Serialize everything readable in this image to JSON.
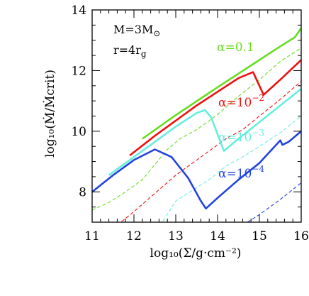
{
  "chart_data": {
    "type": "line",
    "xlabel": "log₁₀(Σ/g·cm⁻²)",
    "ylabel": "log₁₀(Ṁ/Ṁcrit)",
    "xlim": [
      11,
      16
    ],
    "ylim": [
      7,
      14
    ],
    "x_ticks": [
      "11",
      "12",
      "13",
      "14",
      "15",
      "16"
    ],
    "y_ticks": [
      "8",
      "10",
      "12",
      "14"
    ],
    "annotations": {
      "mass": "M=3M",
      "mass_symbol": "⊙",
      "radius": "r=4r",
      "radius_sub": "g"
    },
    "series": [
      {
        "name": "α=0.1",
        "label_base": "α=0.1",
        "label_exp": "",
        "color": "#66dd22",
        "solid": [
          [
            12.2,
            9.75
          ],
          [
            13.0,
            10.53
          ],
          [
            14.0,
            11.45
          ],
          [
            15.0,
            12.35
          ],
          [
            15.5,
            12.8
          ],
          [
            15.85,
            13.1
          ],
          [
            16.0,
            13.4
          ]
        ],
        "dashed": [
          [
            11.0,
            7.4
          ],
          [
            11.4,
            7.65
          ],
          [
            11.8,
            8.0
          ],
          [
            12.2,
            8.4
          ],
          [
            12.5,
            8.9
          ],
          [
            12.8,
            9.4
          ],
          [
            13.1,
            9.75
          ],
          [
            13.5,
            10.05
          ],
          [
            14.0,
            10.55
          ],
          [
            14.5,
            11.15
          ],
          [
            15.0,
            11.7
          ],
          [
            15.5,
            12.3
          ],
          [
            16.0,
            12.75
          ]
        ]
      },
      {
        "name": "α=10⁻²",
        "label_base": "α=10",
        "label_exp": "−2",
        "color": "#ee1111",
        "solid": [
          [
            11.9,
            9.2
          ],
          [
            12.5,
            9.85
          ],
          [
            13.0,
            10.35
          ],
          [
            13.5,
            10.85
          ],
          [
            14.0,
            11.3
          ],
          [
            14.5,
            11.75
          ],
          [
            14.85,
            11.95
          ],
          [
            15.0,
            11.5
          ],
          [
            15.1,
            11.2
          ],
          [
            15.5,
            11.7
          ],
          [
            16.0,
            12.35
          ]
        ],
        "dashed": [
          [
            11.6,
            6.9
          ],
          [
            12.0,
            7.35
          ],
          [
            12.5,
            7.95
          ],
          [
            13.0,
            8.55
          ],
          [
            13.3,
            8.85
          ],
          [
            13.55,
            9.1
          ],
          [
            13.8,
            9.35
          ],
          [
            14.2,
            9.75
          ],
          [
            14.6,
            10.05
          ],
          [
            15.0,
            10.5
          ],
          [
            15.5,
            11.05
          ],
          [
            16.0,
            11.65
          ]
        ]
      },
      {
        "name": "α=10⁻³",
        "label_base": "α=10",
        "label_exp": "−3",
        "color": "#66eedd",
        "solid": [
          [
            11.4,
            8.55
          ],
          [
            12.0,
            9.15
          ],
          [
            12.5,
            9.65
          ],
          [
            13.0,
            10.15
          ],
          [
            13.5,
            10.6
          ],
          [
            13.7,
            10.7
          ],
          [
            13.85,
            10.45
          ],
          [
            14.0,
            9.9
          ],
          [
            14.15,
            9.35
          ],
          [
            14.5,
            9.75
          ],
          [
            15.0,
            10.3
          ],
          [
            15.5,
            10.85
          ],
          [
            16.0,
            11.4
          ]
        ],
        "dashed": [
          [
            12.6,
            6.9
          ],
          [
            12.7,
            7.05
          ],
          [
            13.0,
            7.7
          ],
          [
            13.4,
            8.05
          ],
          [
            13.8,
            8.4
          ],
          [
            14.2,
            8.85
          ],
          [
            14.6,
            9.15
          ],
          [
            15.0,
            9.5
          ],
          [
            15.5,
            9.95
          ],
          [
            16.0,
            10.5
          ]
        ]
      },
      {
        "name": "α=10⁻⁴",
        "label_base": "α=10",
        "label_exp": "−4",
        "color": "#2244dd",
        "solid": [
          [
            11.0,
            8.0
          ],
          [
            11.5,
            8.55
          ],
          [
            12.0,
            9.05
          ],
          [
            12.5,
            9.4
          ],
          [
            12.9,
            9.15
          ],
          [
            13.3,
            8.45
          ],
          [
            13.6,
            7.7
          ],
          [
            13.72,
            7.45
          ],
          [
            14.0,
            7.8
          ],
          [
            14.5,
            8.4
          ],
          [
            15.0,
            8.95
          ],
          [
            15.5,
            9.7
          ],
          [
            15.55,
            9.55
          ],
          [
            15.7,
            9.65
          ],
          [
            16.0,
            10.0
          ]
        ],
        "dashed": [
          [
            14.6,
            6.9
          ],
          [
            15.0,
            7.25
          ],
          [
            15.5,
            7.75
          ],
          [
            16.0,
            8.3
          ]
        ]
      }
    ]
  }
}
